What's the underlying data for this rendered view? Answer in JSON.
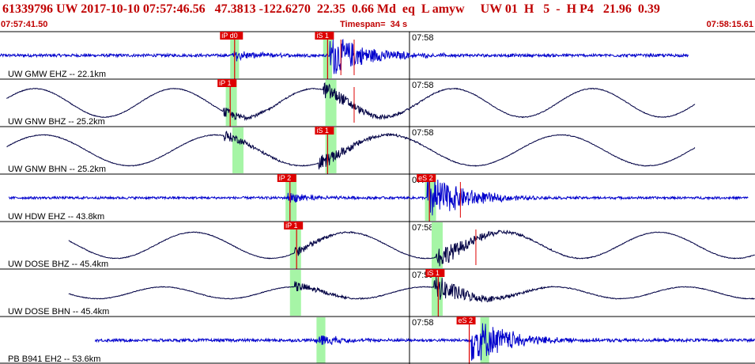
{
  "header": {
    "event_line": "61339796 UW 2017-10-10 07:57:46.56   47.3813 -122.6270  22.35  0.66 Md  eq  L amyw     UW 01  H   5  -  H P4   21.96  0.39",
    "start_time": "07:57:41.50",
    "timespan": "Timespan=  34 s",
    "end_time": "07:58:15.61"
  },
  "time_axis": {
    "start_s": 0,
    "end_s": 34.11,
    "tick_label": "07:58",
    "tick_s": 18.5
  },
  "colors": {
    "header_text": "#c00000",
    "hf_trace": "#0000cc",
    "bb_trace": "#000044",
    "pick": "#dd0000",
    "window": "#a6f5a6"
  },
  "channels": [
    {
      "label": "UW GMW EHZ -- 22.1km",
      "color": "#0000cc",
      "type": "hf",
      "start_s": 0,
      "end_s": 31.1,
      "amp": 0.06,
      "event_s": 10.5,
      "burst_s": 15.2,
      "burst_amp": 0.8,
      "windows": [
        {
          "start_s": 10.4,
          "end_s": 10.8
        },
        {
          "start_s": 14.6,
          "end_s": 15.0
        }
      ],
      "picks": [
        {
          "label": "iP d0",
          "time_s": 10.6
        },
        {
          "label": "iS 1",
          "time_s": 14.8
        }
      ],
      "extra_markers_s": [
        15.4,
        16.0
      ]
    },
    {
      "label": "UW GNW BHZ -- 25.2km",
      "color": "#000044",
      "type": "bb",
      "start_s": 0.3,
      "end_s": 31.4,
      "amp": 0.6,
      "period_s": 6.3,
      "event_s": 10.1,
      "burst_s": 14.9,
      "burst_amp": 0.35,
      "windows": [
        {
          "start_s": 10.2,
          "end_s": 10.7
        },
        {
          "start_s": 14.7,
          "end_s": 15.2
        }
      ],
      "picks": [
        {
          "label": "iP 1",
          "time_s": 10.4
        }
      ],
      "extra_markers_s": [
        16.0
      ]
    },
    {
      "label": "UW GNW BHN -- 25.2km",
      "color": "#000044",
      "type": "bb",
      "start_s": 0.3,
      "end_s": 31.4,
      "amp": 0.65,
      "period_s": 7.8,
      "event_s": 10.1,
      "burst_s": 14.7,
      "burst_amp": 0.3,
      "windows": [
        {
          "start_s": 10.5,
          "end_s": 11.0
        },
        {
          "start_s": 14.7,
          "end_s": 15.2
        }
      ],
      "picks": [
        {
          "label": "iS 1",
          "time_s": 14.8
        }
      ],
      "extra_markers_s": []
    },
    {
      "label": "UW HDW EHZ -- 43.8km",
      "color": "#0000cc",
      "type": "hf",
      "start_s": 0.4,
      "end_s": 33.8,
      "amp": 0.05,
      "event_s": 13.0,
      "burst_s": 19.6,
      "burst_amp": 0.9,
      "windows": [
        {
          "start_s": 12.9,
          "end_s": 13.4
        },
        {
          "start_s": 19.2,
          "end_s": 19.7
        }
      ],
      "picks": [
        {
          "label": "iP 2",
          "time_s": 13.1
        },
        {
          "label": "eS 2",
          "time_s": 19.4
        }
      ],
      "extra_markers_s": [
        20.8
      ]
    },
    {
      "label": "UW DOSE BHZ -- 45.4km",
      "color": "#000044",
      "type": "bb",
      "start_s": 3.1,
      "end_s": 34.1,
      "amp": 0.55,
      "period_s": 7.0,
      "event_s": 13.3,
      "burst_s": 20.0,
      "burst_amp": 0.45,
      "windows": [
        {
          "start_s": 13.1,
          "end_s": 13.6
        },
        {
          "start_s": 19.5,
          "end_s": 20.0
        }
      ],
      "picks": [
        {
          "label": "iP 1",
          "time_s": 13.4
        }
      ],
      "extra_markers_s": [
        21.5
      ]
    },
    {
      "label": "UW DOSE BHN -- 45.4km",
      "color": "#000044",
      "type": "bb",
      "start_s": 3.1,
      "end_s": 34.1,
      "amp": 0.25,
      "period_s": 5.9,
      "event_s": 13.3,
      "burst_s": 19.9,
      "burst_amp": 0.5,
      "windows": [
        {
          "start_s": 13.1,
          "end_s": 13.6
        },
        {
          "start_s": 19.5,
          "end_s": 20.0
        }
      ],
      "picks": [
        {
          "label": "iS 1",
          "time_s": 19.8
        }
      ],
      "extra_markers_s": []
    },
    {
      "label": "PB B941 EH2 -- 53.6km",
      "color": "#0000cc",
      "type": "hf",
      "start_s": 4.3,
      "end_s": 34.1,
      "amp": 0.06,
      "event_s": 14.3,
      "burst_s": 21.6,
      "burst_amp": 0.9,
      "windows": [
        {
          "start_s": 14.3,
          "end_s": 14.7
        },
        {
          "start_s": 21.7,
          "end_s": 22.1
        }
      ],
      "picks": [
        {
          "label": "eS 2",
          "time_s": 21.2
        }
      ],
      "extra_markers_s": []
    }
  ]
}
